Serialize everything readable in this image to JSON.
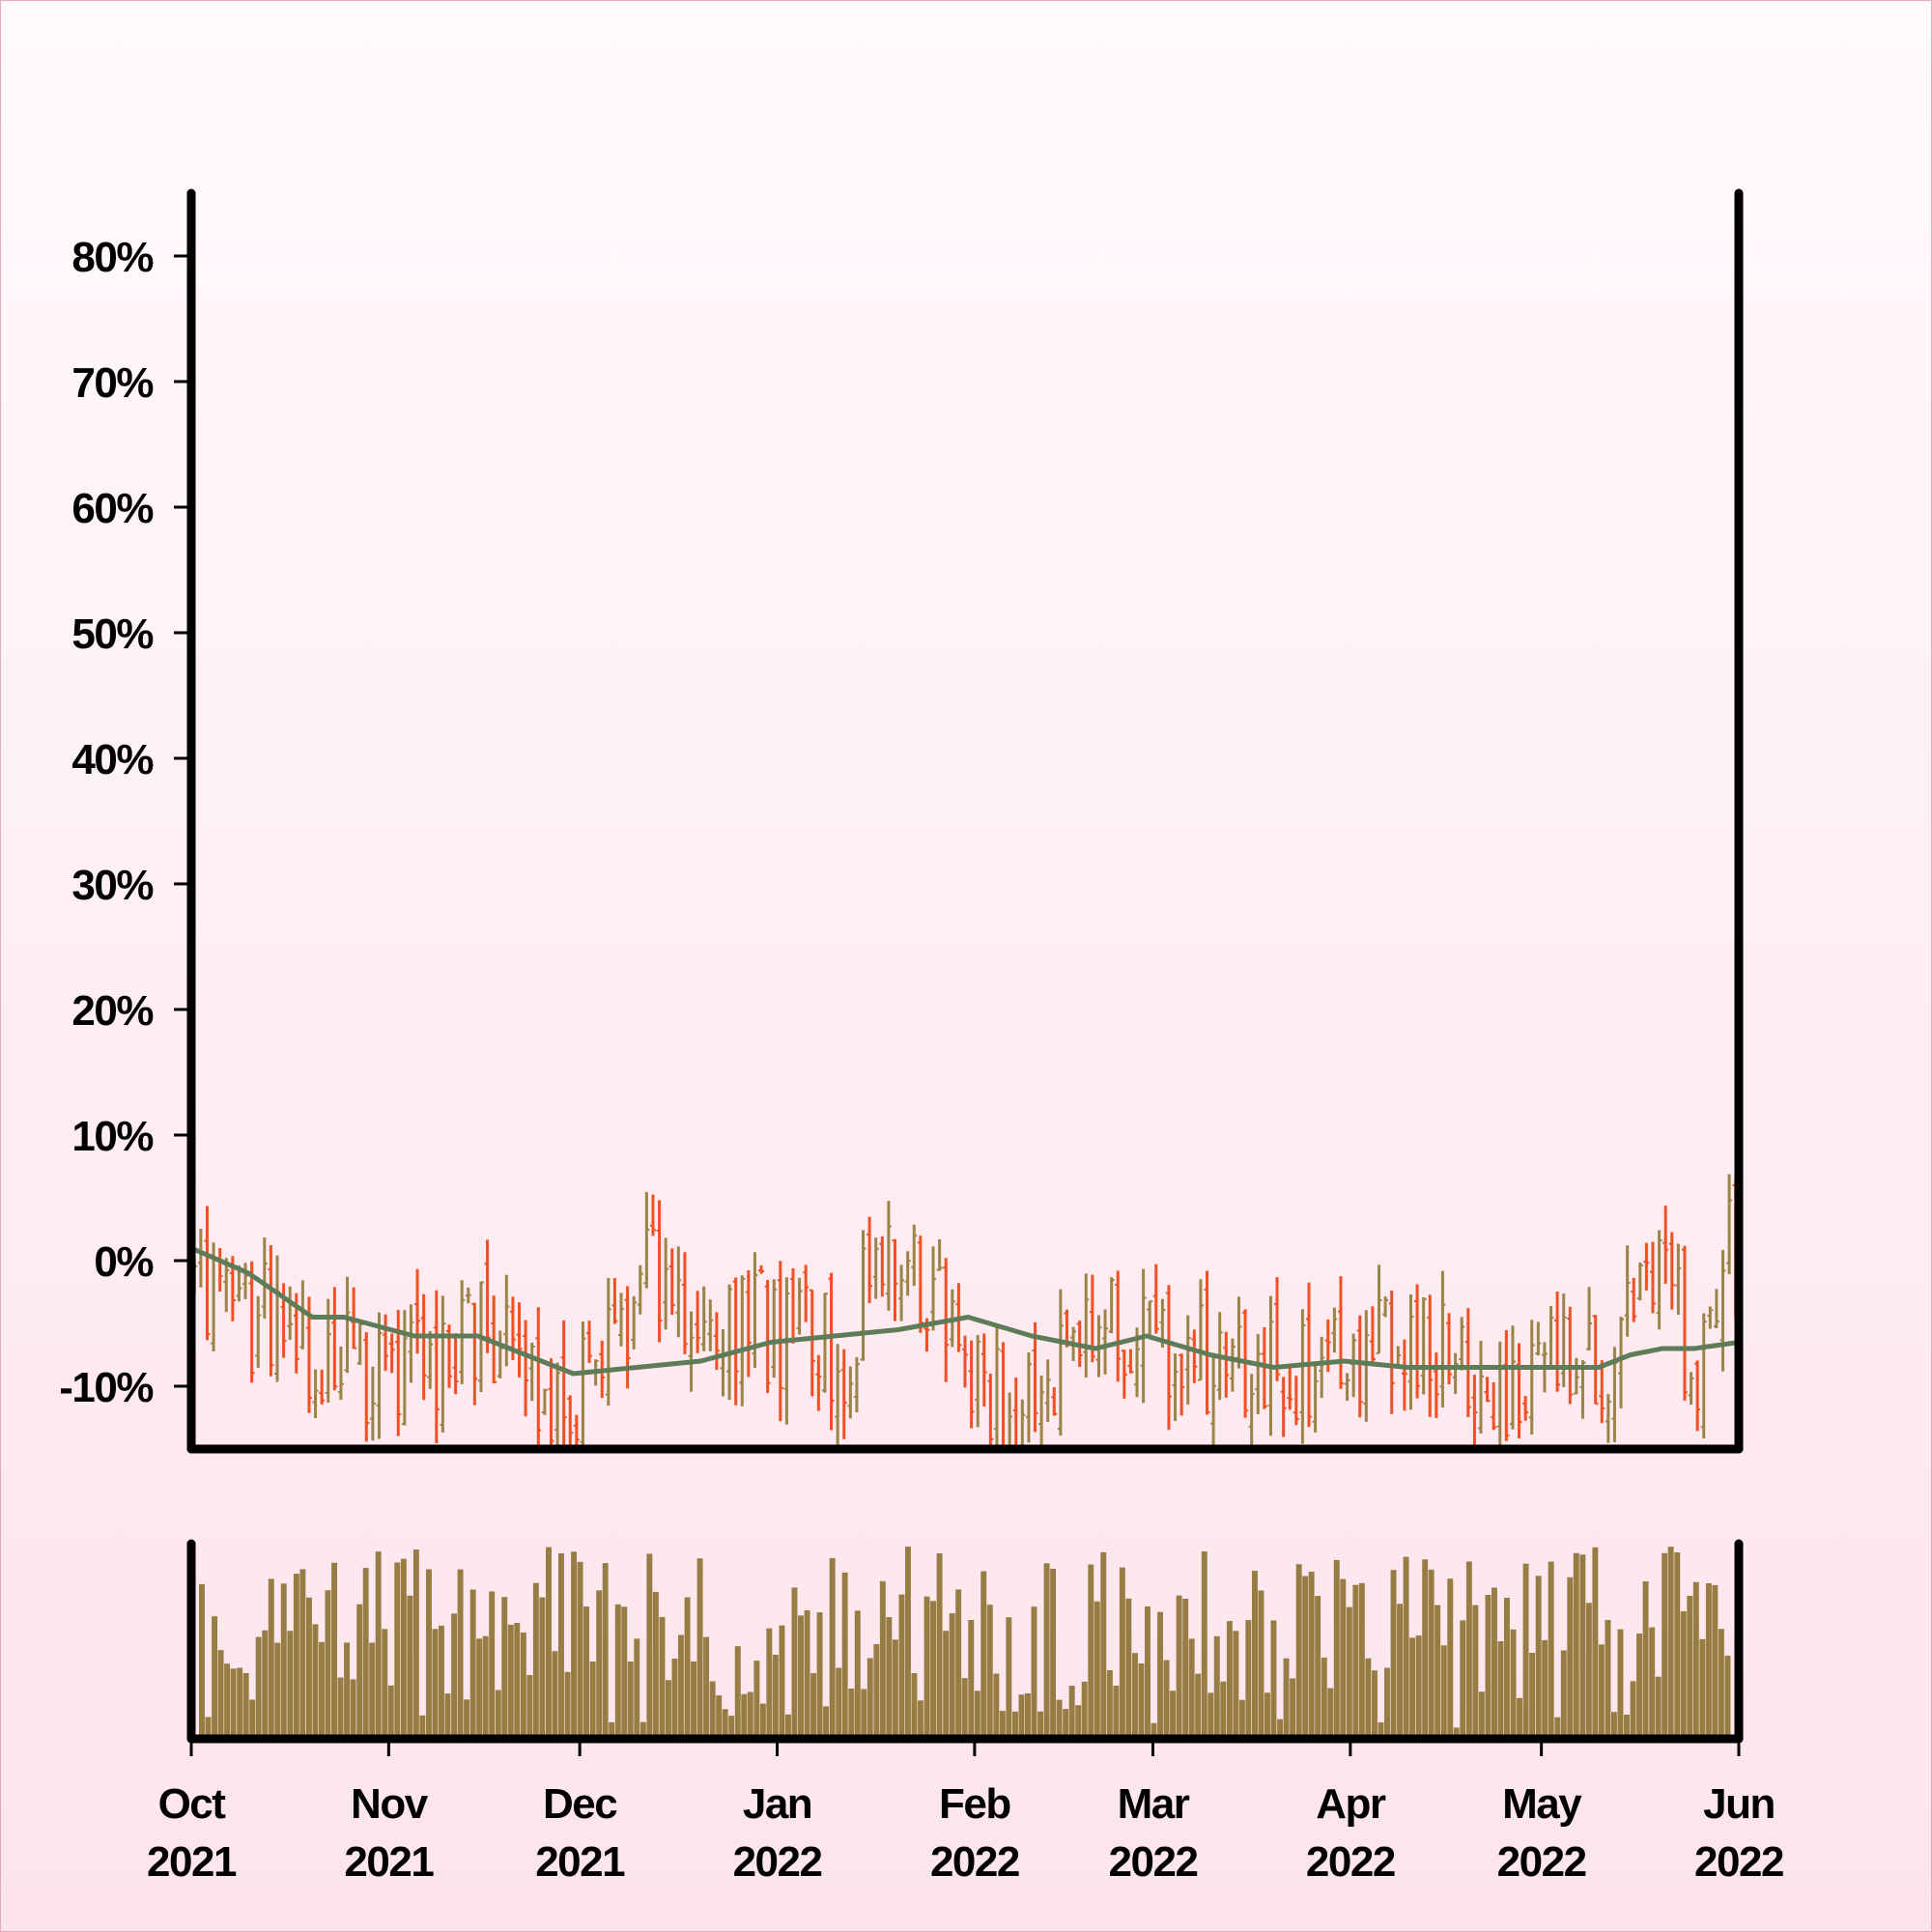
{
  "colors": {
    "up": "#9a8447",
    "down": "#f25022",
    "moving_average": "#5f7c59",
    "volume": "#977c43",
    "axis": "#000000",
    "background_top": "#fffafb",
    "background_bottom": "#fde4ec"
  },
  "chart_data": {
    "type": "ohlc",
    "title": "",
    "ylabel": "",
    "xlabel": "",
    "price_panel": {
      "yaxis_format": "percent",
      "ylim": [
        -15,
        85
      ],
      "y_ticks": [
        -10,
        0,
        10,
        20,
        30,
        40,
        50,
        60,
        70,
        80
      ],
      "y_tick_labels": [
        "-10%",
        "0%",
        "10%",
        "20%",
        "30%",
        "40%",
        "50%",
        "60%",
        "70%",
        "80%"
      ],
      "grid": false
    },
    "volume_panel": {
      "y_ticks": [],
      "grid": false
    },
    "x_range": [
      "2021-10-01",
      "2022-06-01"
    ],
    "x_ticks": [
      "2021-10-01",
      "2021-11-01",
      "2021-12-01",
      "2022-01-01",
      "2022-02-01",
      "2022-03-01",
      "2022-04-01",
      "2022-05-01",
      "2022-06-01"
    ],
    "x_tick_labels": [
      [
        "Oct",
        "2021"
      ],
      [
        "Nov",
        "2021"
      ],
      [
        "Dec",
        "2021"
      ],
      [
        "Jan",
        "2022"
      ],
      [
        "Feb",
        "2022"
      ],
      [
        "Mar",
        "2022"
      ],
      [
        "Apr",
        "2022"
      ],
      [
        "May",
        "2022"
      ],
      [
        "Jun",
        "2022"
      ]
    ],
    "series": [
      {
        "kind": "ohlc_bars",
        "bar_count": 243,
        "close_anchors": [
          [
            "2021-10-01",
            0
          ],
          [
            "2021-10-15",
            -6
          ],
          [
            "2021-10-31",
            -10
          ],
          [
            "2021-11-15",
            -6
          ],
          [
            "2021-11-28",
            -12
          ],
          [
            "2021-12-10",
            -2
          ],
          [
            "2021-12-25",
            -4
          ],
          [
            "2022-01-10",
            -8
          ],
          [
            "2022-01-20",
            1
          ],
          [
            "2022-02-05",
            -12
          ],
          [
            "2022-02-20",
            -5
          ],
          [
            "2022-03-10",
            -8
          ],
          [
            "2022-03-25",
            -10
          ],
          [
            "2022-04-10",
            -5
          ],
          [
            "2022-04-25",
            -10
          ],
          [
            "2022-05-10",
            -9
          ],
          [
            "2022-05-20",
            -3
          ],
          [
            "2022-05-25",
            -8
          ],
          [
            "2022-06-01",
            3
          ]
        ]
      },
      {
        "kind": "moving_average",
        "points": [
          [
            "2021-10-01",
            1
          ],
          [
            "2021-10-10",
            -1
          ],
          [
            "2021-10-20",
            -4.5
          ],
          [
            "2021-10-25",
            -4.5
          ],
          [
            "2021-11-05",
            -6
          ],
          [
            "2021-11-15",
            -6
          ],
          [
            "2021-11-20",
            -7
          ],
          [
            "2021-11-30",
            -9
          ],
          [
            "2021-12-10",
            -8.5
          ],
          [
            "2021-12-20",
            -8
          ],
          [
            "2021-12-31",
            -6.5
          ],
          [
            "2022-01-10",
            -6
          ],
          [
            "2022-01-20",
            -5.5
          ],
          [
            "2022-01-31",
            -4.5
          ],
          [
            "2022-02-10",
            -6
          ],
          [
            "2022-02-20",
            -7
          ],
          [
            "2022-02-28",
            -6
          ],
          [
            "2022-03-10",
            -7.5
          ],
          [
            "2022-03-20",
            -8.5
          ],
          [
            "2022-03-31",
            -8
          ],
          [
            "2022-04-10",
            -8.5
          ],
          [
            "2022-04-20",
            -8.5
          ],
          [
            "2022-05-01",
            -8.5
          ],
          [
            "2022-05-10",
            -8.5
          ],
          [
            "2022-05-15",
            -7.5
          ],
          [
            "2022-05-20",
            -7
          ],
          [
            "2022-05-25",
            -7
          ],
          [
            "2022-06-01",
            -6.5
          ]
        ]
      },
      {
        "kind": "volume_bars",
        "relative_range": [
          0.05,
          1.0
        ]
      }
    ]
  }
}
